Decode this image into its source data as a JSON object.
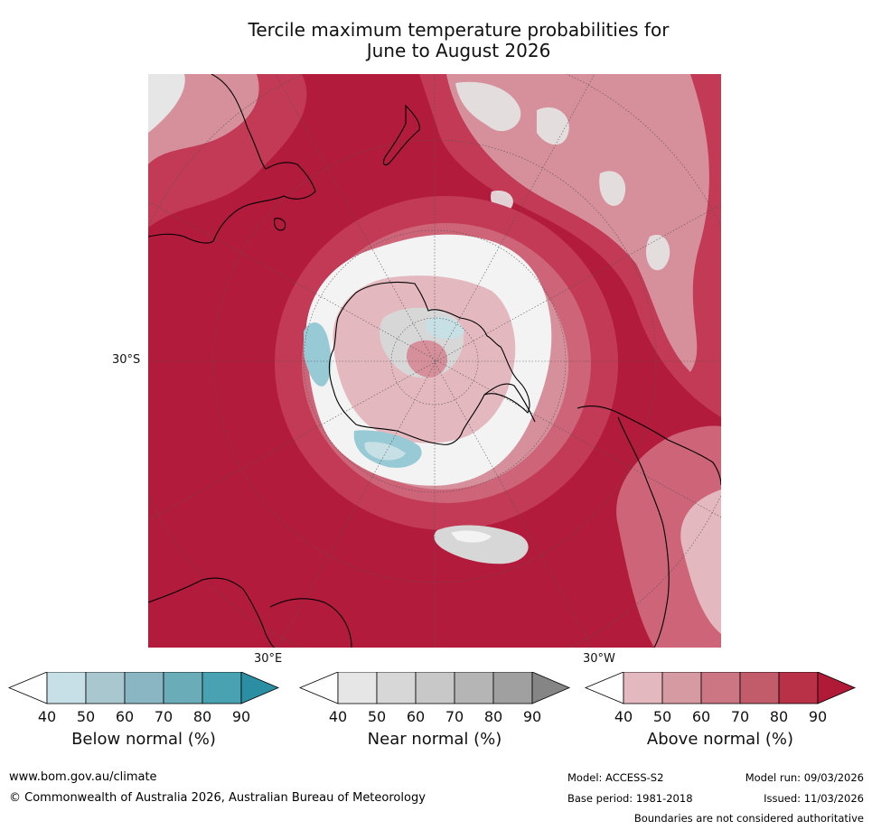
{
  "title": {
    "line1": "Tercile maximum temperature probabilities for",
    "line2": "June to August 2026"
  },
  "map": {
    "projection": "south-polar-stereographic",
    "labels": {
      "lat": "30°S",
      "lon_east": "30°E",
      "lon_west": "30°W"
    },
    "colors": {
      "ocean_above_90": "#b31b3c",
      "above_80": "#c23a55",
      "above_70": "#cd6478",
      "above_60": "#d6909c",
      "above_50": "#e3b8bf",
      "near_40": "#e6e6e6",
      "below_50": "#c6e0e6",
      "below_60": "#98cad6",
      "coastline": "#000000"
    }
  },
  "colorbars": [
    {
      "name": "below",
      "title": "Below normal (%)",
      "ticks": [
        "40",
        "50",
        "60",
        "70",
        "80",
        "90"
      ],
      "colors": [
        "#c7dfe6",
        "#a8c7ce",
        "#8ab6c3",
        "#6bacb9",
        "#49a2b1",
        "#2c8ea3"
      ]
    },
    {
      "name": "near",
      "title": "Near normal (%)",
      "ticks": [
        "40",
        "50",
        "60",
        "70",
        "80",
        "90"
      ],
      "colors": [
        "#e6e6e6",
        "#d7d7d7",
        "#c8c8c8",
        "#b5b5b5",
        "#a0a0a0",
        "#858585"
      ]
    },
    {
      "name": "above",
      "title": "Above normal (%)",
      "ticks": [
        "40",
        "50",
        "60",
        "70",
        "80",
        "90"
      ],
      "colors": [
        "#e3b8bf",
        "#d69aa2",
        "#cb7682",
        "#c25c6a",
        "#b83147",
        "#b01a37"
      ]
    }
  ],
  "footer": {
    "website": "www.bom.gov.au/climate",
    "copyright": "© Commonwealth of Australia 2026, Australian Bureau of Meteorology",
    "model": "Model: ACCESS-S2",
    "base_period": "Base period: 1981-2018",
    "model_run": "Model run: 09/03/2026",
    "issued": "Issued: 11/03/2026",
    "disclaimer": "Boundaries are not considered authoritative"
  }
}
